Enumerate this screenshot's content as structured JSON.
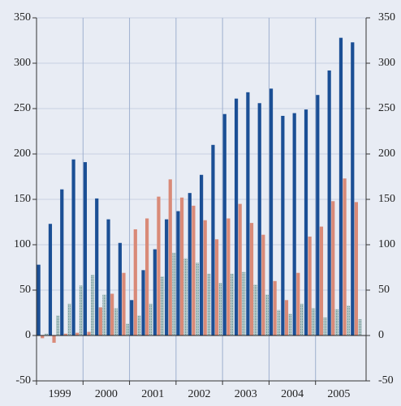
{
  "chart_data": {
    "type": "bar",
    "categories": [
      null,
      null,
      null,
      null,
      null,
      null,
      null,
      null,
      null,
      null,
      null,
      null,
      null,
      null,
      null,
      null,
      null,
      null,
      null,
      null,
      null,
      null,
      null,
      null,
      null,
      null,
      null,
      null
    ],
    "year_labels": [
      "1999",
      "2000",
      "2001",
      "2002",
      "2003",
      "2004",
      "2005"
    ],
    "series": [
      {
        "color": "#1b4f95",
        "values": [
          78,
          123,
          161,
          194,
          191,
          151,
          128,
          102,
          39,
          72,
          95,
          128,
          137,
          157,
          177,
          210,
          244,
          261,
          268,
          256,
          272,
          242,
          245,
          249,
          265,
          292,
          328,
          323
        ]
      },
      {
        "color": "#d98a78",
        "values": [
          -3,
          -8,
          2,
          3,
          4,
          31,
          46,
          69,
          117,
          129,
          153,
          172,
          152,
          143,
          127,
          106,
          129,
          145,
          124,
          111,
          60,
          39,
          69,
          109,
          120,
          148,
          173,
          147
        ]
      },
      {
        "color": "#7fa3a6",
        "values": [
          2,
          22,
          35,
          55,
          67,
          45,
          30,
          13,
          22,
          35,
          65,
          91,
          85,
          80,
          68,
          58,
          68,
          70,
          56,
          45,
          28,
          24,
          35,
          30,
          20,
          29,
          33,
          18
        ]
      }
    ],
    "ylim": [
      -50,
      350
    ],
    "yticks": [
      -50,
      0,
      50,
      100,
      150,
      200,
      250,
      300,
      350
    ],
    "y2lim": [
      -50,
      350
    ],
    "y2ticks": [
      -50,
      0,
      50,
      100,
      150,
      200,
      250,
      300,
      350
    ],
    "grid": true
  }
}
